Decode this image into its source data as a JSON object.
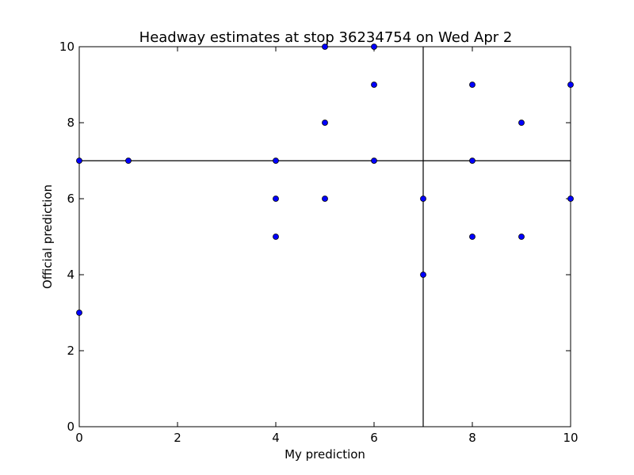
{
  "chart_data": {
    "type": "scatter",
    "title": "Headway estimates at stop 36234754 on Wed Apr 2",
    "xlabel": "My prediction",
    "ylabel": "Official prediction",
    "xlim": [
      0,
      10
    ],
    "ylim": [
      0,
      10
    ],
    "xticks": [
      0,
      2,
      4,
      6,
      8,
      10
    ],
    "yticks": [
      0,
      2,
      4,
      6,
      8,
      10
    ],
    "grid": false,
    "reference_lines": {
      "vertical_x": 7,
      "horizontal_y": 7
    },
    "point_color": "#0000ff",
    "points": [
      {
        "x": 0,
        "y": 7
      },
      {
        "x": 0,
        "y": 3
      },
      {
        "x": 1,
        "y": 7
      },
      {
        "x": 4,
        "y": 7
      },
      {
        "x": 4,
        "y": 6
      },
      {
        "x": 4,
        "y": 5
      },
      {
        "x": 5,
        "y": 10
      },
      {
        "x": 5,
        "y": 8
      },
      {
        "x": 5,
        "y": 6
      },
      {
        "x": 6,
        "y": 10
      },
      {
        "x": 6,
        "y": 9
      },
      {
        "x": 6,
        "y": 7
      },
      {
        "x": 7,
        "y": 6
      },
      {
        "x": 7,
        "y": 4
      },
      {
        "x": 8,
        "y": 9
      },
      {
        "x": 8,
        "y": 7
      },
      {
        "x": 8,
        "y": 5
      },
      {
        "x": 9,
        "y": 8
      },
      {
        "x": 9,
        "y": 5
      },
      {
        "x": 10,
        "y": 9
      },
      {
        "x": 10,
        "y": 6
      }
    ]
  }
}
